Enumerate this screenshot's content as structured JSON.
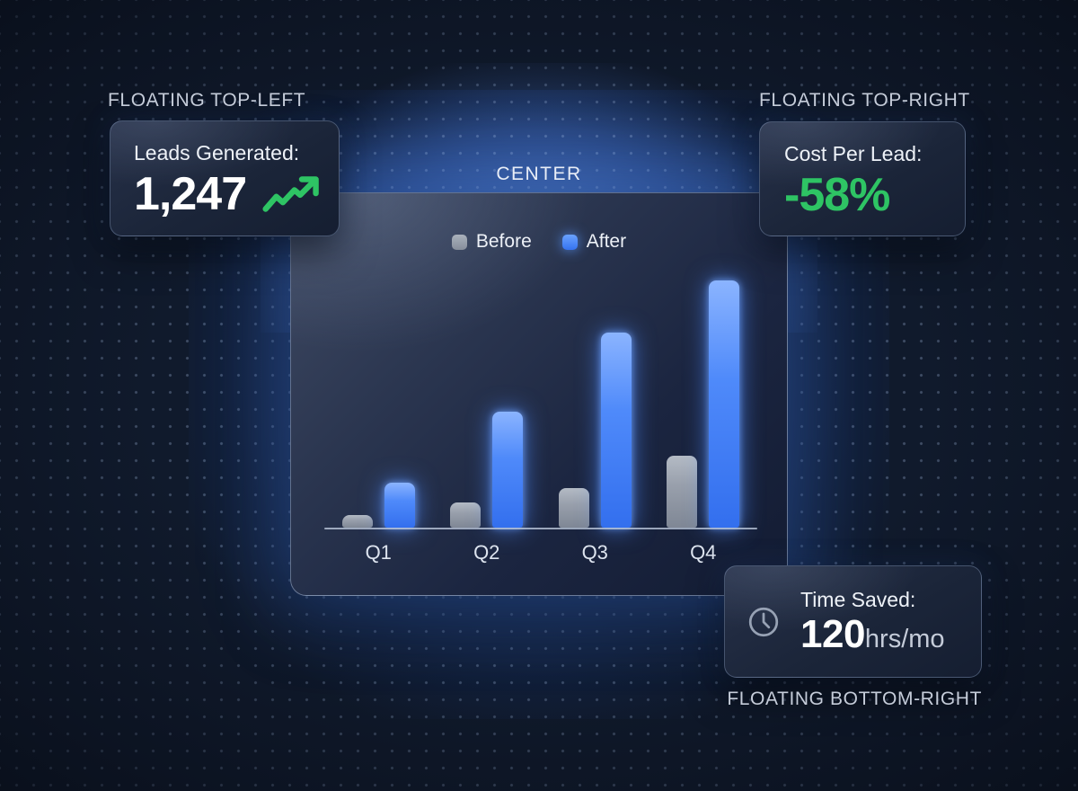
{
  "labels": {
    "top_left": "FLOATING TOP-LEFT",
    "top_right": "FLOATING TOP-RIGHT",
    "bottom_right": "FLOATING BOTTOM-RIGHT",
    "center": "CENTER"
  },
  "cards": {
    "top_left": {
      "title": "Leads Generated:",
      "value": "1,247",
      "icon": "trend-up"
    },
    "top_right": {
      "title": "Cost Per Lead:",
      "value": "-58%"
    },
    "bottom_right": {
      "title": "Time Saved:",
      "value": "120",
      "value_suffix": "hrs/mo",
      "icon": "clock"
    }
  },
  "chart_data": {
    "type": "bar",
    "title": "",
    "xlabel": "",
    "ylabel": "",
    "categories": [
      "Q1",
      "Q2",
      "Q3",
      "Q4"
    ],
    "series": [
      {
        "name": "Before",
        "color": "#98a0ad",
        "values": [
          5,
          10,
          16,
          29
        ]
      },
      {
        "name": "After",
        "color": "#3b7ef8",
        "values": [
          18,
          47,
          79,
          100
        ]
      }
    ],
    "ylim": [
      0,
      100
    ],
    "grid": false,
    "legend_position": "top",
    "axis_ticks_shown": false
  },
  "colors": {
    "accent_green": "#2ec464",
    "accent_blue": "#3b7ef8",
    "bar_gray": "#98a0ad",
    "background": "#101a2c",
    "glow_blue": "#3469c8"
  }
}
